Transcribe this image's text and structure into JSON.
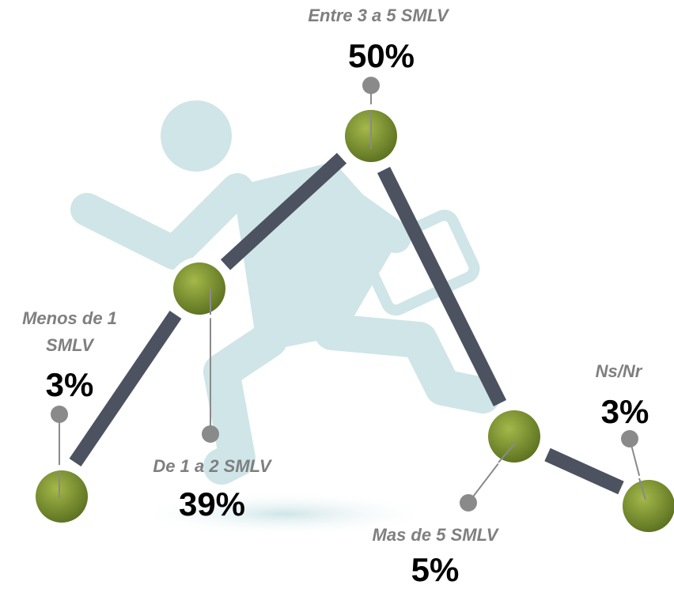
{
  "nodes": [
    {
      "label": "Menos de 1 SMLV",
      "value": "3%"
    },
    {
      "label": "De 1 a 2 SMLV",
      "value": "39%"
    },
    {
      "label": "Entre 3 a 5 SMLV",
      "value": "50%"
    },
    {
      "label": "Mas de 5 SMLV",
      "value": "5%"
    },
    {
      "label": "Ns/Nr",
      "value": "3%"
    }
  ]
}
